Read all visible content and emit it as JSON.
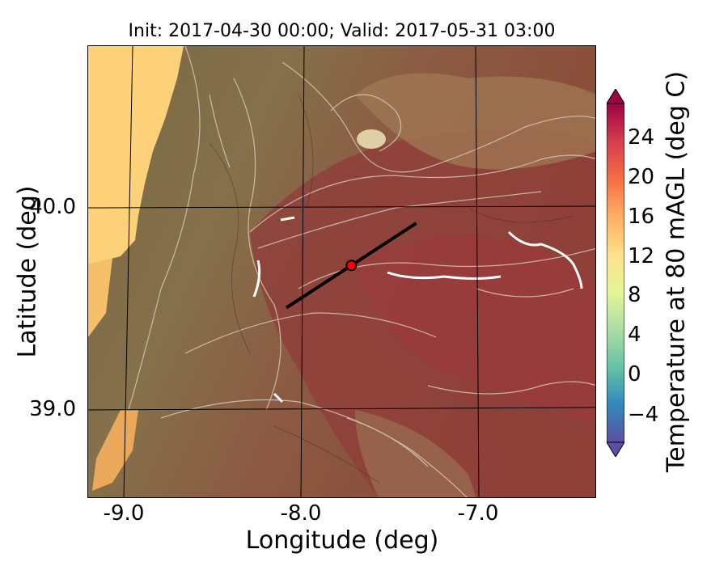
{
  "title": "Init: 2017-04-30 00:00; Valid: 2017-05-31 03:00",
  "xlabel": "Longitude (deg)",
  "ylabel": "Latitude (deg)",
  "x_ticks": [
    "-9.0",
    "-8.0",
    "-7.0"
  ],
  "y_ticks": [
    "40.0",
    "39.0"
  ],
  "colorbar": {
    "label": "Temperature at 80 mAGL (deg C)",
    "ticks": [
      "24",
      "20",
      "16",
      "12",
      "8",
      "4",
      "0",
      "−4"
    ],
    "range": [
      -8,
      28
    ],
    "colors": [
      "#5e4fa2",
      "#3288bd",
      "#66c2a5",
      "#abdda4",
      "#e6f598",
      "#fee08b",
      "#fdae61",
      "#f46d43",
      "#d53e4f",
      "#9e0142"
    ]
  },
  "map": {
    "lon_range": [
      -9.25,
      -6.35
    ],
    "lat_range": [
      38.55,
      40.8
    ],
    "transect": {
      "start": [
        -8.12,
        39.5
      ],
      "end": [
        -7.38,
        39.92
      ]
    },
    "site_marker": {
      "lon": -7.75,
      "lat": 39.71,
      "color": "#ff0000"
    }
  }
}
